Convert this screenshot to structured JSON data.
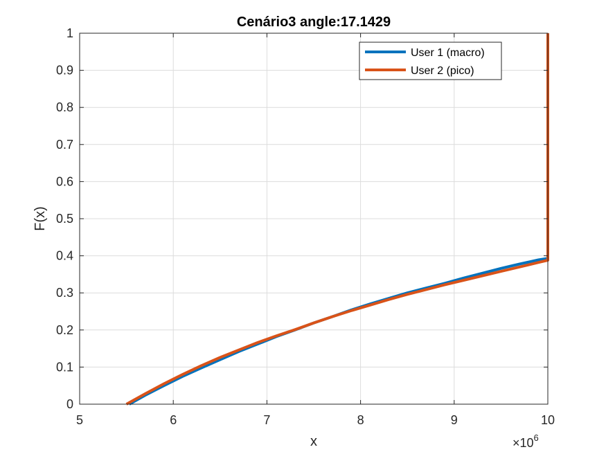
{
  "chart_data": {
    "type": "line",
    "title": "Cenário3 angle:17.1429",
    "xlabel": "x",
    "ylabel": "F(x)",
    "x_exponent_label": "×10",
    "x_exponent_power": "6",
    "xlim": [
      5,
      10
    ],
    "ylim": [
      0,
      1
    ],
    "x_ticks": [
      5,
      6,
      7,
      8,
      9,
      10
    ],
    "x_tick_labels": [
      "5",
      "6",
      "7",
      "8",
      "9",
      "10"
    ],
    "y_ticks": [
      0,
      0.1,
      0.2,
      0.3,
      0.4,
      0.5,
      0.6,
      0.7,
      0.8,
      0.9,
      1
    ],
    "y_tick_labels": [
      "0",
      "0.1",
      "0.2",
      "0.3",
      "0.4",
      "0.5",
      "0.6",
      "0.7",
      "0.8",
      "0.9",
      "1"
    ],
    "grid": true,
    "legend_position": "top-right",
    "series": [
      {
        "name": "User 1 (macro)",
        "color": "#0072BD",
        "x": [
          5.53,
          5.7,
          5.9,
          6.1,
          6.3,
          6.5,
          6.7,
          6.9,
          7.1,
          7.3,
          7.5,
          7.7,
          7.9,
          8.1,
          8.3,
          8.5,
          8.7,
          8.9,
          9.1,
          9.3,
          9.5,
          9.7,
          9.9,
          10.0
        ],
        "y": [
          0.0,
          0.024,
          0.05,
          0.075,
          0.098,
          0.12,
          0.142,
          0.162,
          0.182,
          0.2,
          0.219,
          0.236,
          0.254,
          0.27,
          0.285,
          0.3,
          0.313,
          0.326,
          0.34,
          0.353,
          0.366,
          0.378,
          0.389,
          0.393
        ]
      },
      {
        "name": "User 2 (pico)",
        "color": "#D95319",
        "x": [
          5.5,
          5.7,
          5.9,
          6.1,
          6.3,
          6.5,
          6.7,
          6.9,
          7.1,
          7.3,
          7.5,
          7.7,
          7.9,
          8.1,
          8.3,
          8.5,
          8.7,
          8.9,
          9.1,
          9.3,
          9.5,
          9.7,
          9.9,
          10.0,
          10.0
        ],
        "y": [
          0.0,
          0.028,
          0.055,
          0.08,
          0.104,
          0.126,
          0.146,
          0.166,
          0.184,
          0.201,
          0.219,
          0.236,
          0.252,
          0.267,
          0.282,
          0.296,
          0.309,
          0.322,
          0.334,
          0.346,
          0.358,
          0.37,
          0.382,
          0.388,
          1.0
        ]
      }
    ]
  }
}
